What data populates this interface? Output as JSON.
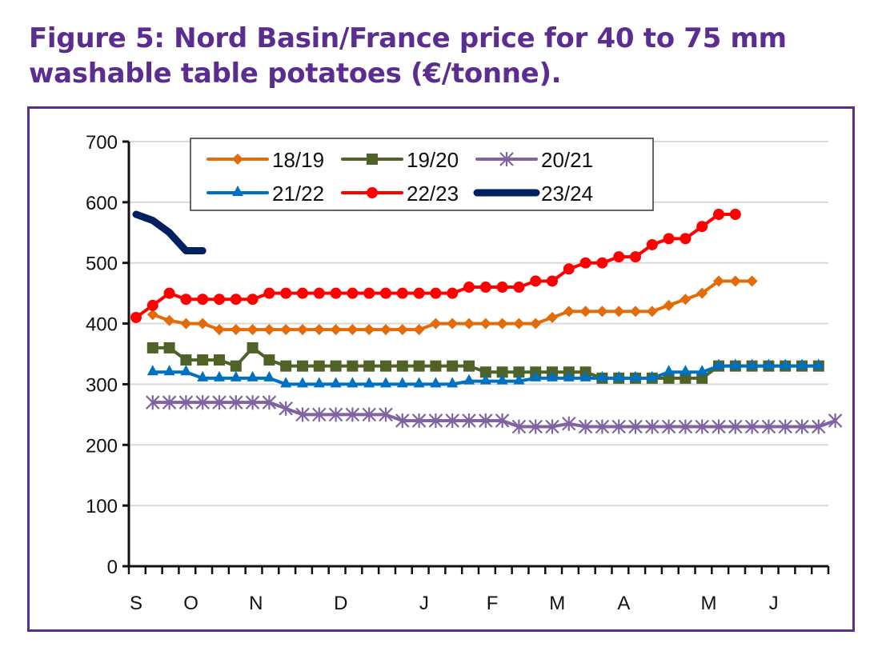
{
  "figure": {
    "title_line1": "Figure 5: Nord Basin/France price for 40 to 75 mm",
    "title_line2": "washable table potatoes (€/tonne)."
  },
  "colors": {
    "title": "#5b2d91",
    "frame": "#5b2d91",
    "grid": "#d9d9d9",
    "axis": "#111111"
  },
  "chart_data": {
    "type": "line",
    "title": "Figure 5: Nord Basin/France price for 40 to 75 mm washable table potatoes (€/tonne).",
    "xlabel": "",
    "ylabel": "€/tonne",
    "ylim": [
      0,
      700
    ],
    "yticks": [
      0,
      100,
      200,
      300,
      400,
      500,
      600,
      700
    ],
    "x_points": 43,
    "x_tick_count": 43,
    "month_labels": [
      {
        "label": "S",
        "index": 0
      },
      {
        "label": "O",
        "index": 3.3
      },
      {
        "label": "N",
        "index": 7.2
      },
      {
        "label": "D",
        "index": 12.3
      },
      {
        "label": "J",
        "index": 17.3
      },
      {
        "label": "F",
        "index": 21.4
      },
      {
        "label": "M",
        "index": 25.3
      },
      {
        "label": "A",
        "index": 29.3
      },
      {
        "label": "M",
        "index": 34.4
      },
      {
        "label": "J",
        "index": 38.3
      }
    ],
    "grid": true,
    "legend_position": "top",
    "series": [
      {
        "name": "18/19",
        "color": "#e36c0a",
        "marker": "diamond",
        "start": 1,
        "values": [
          415,
          405,
          400,
          400,
          390,
          390,
          390,
          390,
          390,
          390,
          390,
          390,
          390,
          390,
          390,
          390,
          390,
          400,
          400,
          400,
          400,
          400,
          400,
          400,
          410,
          420,
          420,
          420,
          420,
          420,
          420,
          430,
          440,
          450,
          470,
          470,
          470
        ]
      },
      {
        "name": "19/20",
        "color": "#4f6228",
        "marker": "square",
        "start": 1,
        "values": [
          360,
          360,
          340,
          340,
          340,
          330,
          360,
          340,
          330,
          330,
          330,
          330,
          330,
          330,
          330,
          330,
          330,
          330,
          330,
          330,
          320,
          320,
          320,
          320,
          320,
          320,
          320,
          310,
          310,
          310,
          310,
          310,
          310,
          310,
          330,
          330,
          330,
          330,
          330,
          330,
          330
        ]
      },
      {
        "name": "20/21",
        "color": "#8064a2",
        "marker": "star",
        "start": 1,
        "values": [
          270,
          270,
          270,
          270,
          270,
          270,
          270,
          270,
          260,
          250,
          250,
          250,
          250,
          250,
          250,
          240,
          240,
          240,
          240,
          240,
          240,
          240,
          230,
          230,
          230,
          235,
          230,
          230,
          230,
          230,
          230,
          230,
          230,
          230,
          230,
          230,
          230,
          230,
          230,
          230,
          230,
          240
        ]
      },
      {
        "name": "21/22",
        "color": "#0070c0",
        "marker": "triangle",
        "start": 1,
        "values": [
          320,
          320,
          320,
          310,
          310,
          310,
          310,
          310,
          300,
          300,
          300,
          300,
          300,
          300,
          300,
          300,
          300,
          300,
          300,
          305,
          305,
          305,
          305,
          310,
          310,
          310,
          310,
          310,
          310,
          310,
          310,
          320,
          320,
          320,
          330,
          330,
          330,
          330,
          330,
          330,
          330
        ]
      },
      {
        "name": "22/23",
        "color": "#ff0000",
        "marker": "circle",
        "start": 0,
        "values": [
          410,
          430,
          450,
          440,
          440,
          440,
          440,
          440,
          450,
          450,
          450,
          450,
          450,
          450,
          450,
          450,
          450,
          450,
          450,
          450,
          460,
          460,
          460,
          460,
          470,
          470,
          490,
          500,
          500,
          510,
          510,
          530,
          540,
          540,
          560,
          580,
          580
        ]
      },
      {
        "name": "23/24",
        "color": "#002060",
        "marker": "none",
        "thick": true,
        "start": 0,
        "values": [
          580,
          570,
          550,
          520,
          520
        ]
      }
    ]
  }
}
